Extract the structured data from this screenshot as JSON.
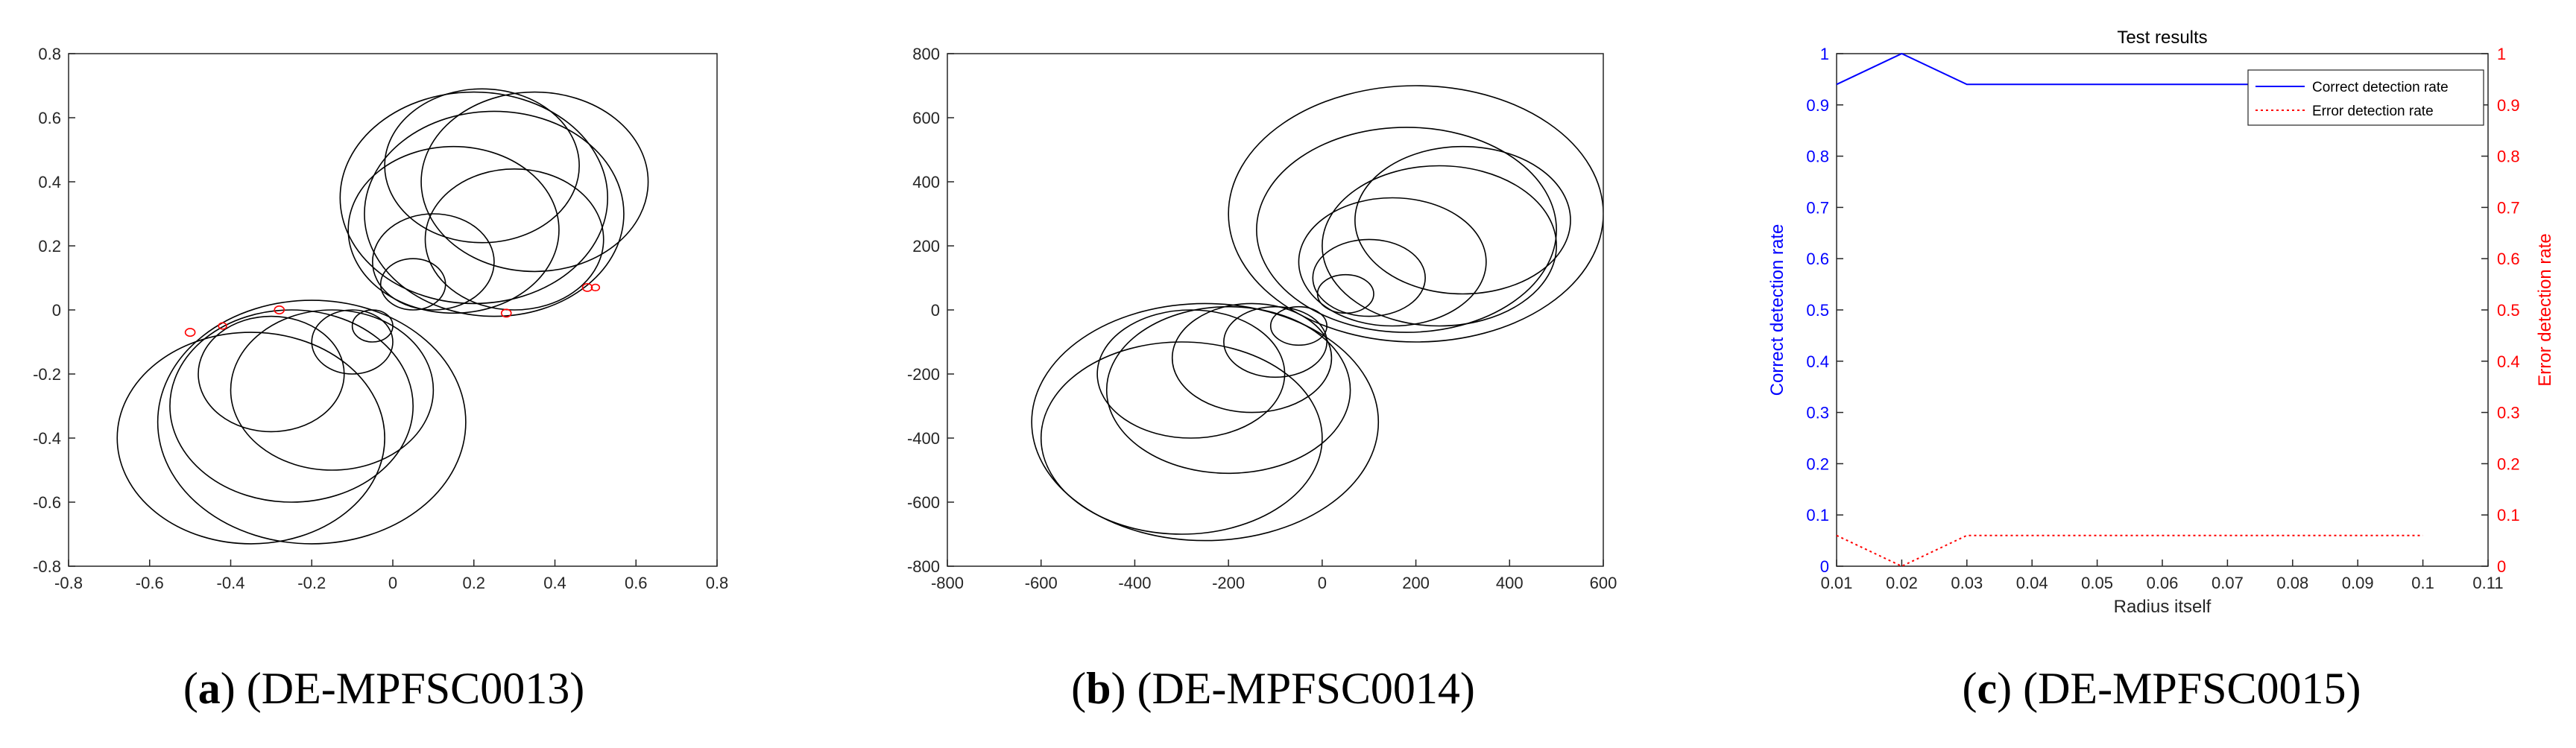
{
  "captions": [
    {
      "letter": "a",
      "text": "(DE-MPFSC0013)"
    },
    {
      "letter": "b",
      "text": "(DE-MPFSC0014)"
    },
    {
      "letter": "c",
      "text": "(DE-MPFSC0015)"
    }
  ],
  "chart_data": [
    {
      "type": "scatter",
      "marker": "circle",
      "title": "",
      "xlim": [
        -0.8,
        0.8
      ],
      "ylim": [
        -0.8,
        0.8
      ],
      "xticks": [
        "-0.8",
        "-0.6",
        "-0.4",
        "-0.2",
        "0",
        "0.2",
        "0.4",
        "0.6",
        "0.8"
      ],
      "yticks": [
        "-0.8",
        "-0.6",
        "-0.4",
        "-0.2",
        "0",
        "0.2",
        "0.4",
        "0.6",
        "0.8"
      ],
      "colors": {
        "self": "#000000",
        "detectors": "#ff0000"
      },
      "series": [
        {
          "color": "#000000",
          "circles": [
            {
              "x": 0.2,
              "y": 0.35,
              "r": 0.33
            },
            {
              "x": 0.25,
              "y": 0.3,
              "r": 0.32
            },
            {
              "x": 0.15,
              "y": 0.25,
              "r": 0.26
            },
            {
              "x": 0.3,
              "y": 0.22,
              "r": 0.22
            },
            {
              "x": 0.1,
              "y": 0.15,
              "r": 0.15
            },
            {
              "x": 0.35,
              "y": 0.4,
              "r": 0.28
            },
            {
              "x": 0.22,
              "y": 0.45,
              "r": 0.24
            },
            {
              "x": 0.05,
              "y": 0.08,
              "r": 0.08
            },
            {
              "x": -0.2,
              "y": -0.35,
              "r": 0.38
            },
            {
              "x": -0.25,
              "y": -0.3,
              "r": 0.3
            },
            {
              "x": -0.15,
              "y": -0.25,
              "r": 0.25
            },
            {
              "x": -0.3,
              "y": -0.2,
              "r": 0.18
            },
            {
              "x": -0.1,
              "y": -0.1,
              "r": 0.1
            },
            {
              "x": -0.35,
              "y": -0.4,
              "r": 0.33
            },
            {
              "x": -0.05,
              "y": -0.05,
              "r": 0.05
            }
          ]
        },
        {
          "color": "#ff0000",
          "circles": [
            {
              "x": -0.5,
              "y": -0.07,
              "r": 0.012
            },
            {
              "x": -0.42,
              "y": -0.05,
              "r": 0.01
            },
            {
              "x": -0.28,
              "y": 0.0,
              "r": 0.012
            },
            {
              "x": 0.28,
              "y": -0.01,
              "r": 0.012
            },
            {
              "x": 0.48,
              "y": 0.07,
              "r": 0.012
            },
            {
              "x": 0.5,
              "y": 0.07,
              "r": 0.01
            }
          ]
        }
      ]
    },
    {
      "type": "scatter",
      "marker": "circle",
      "title": "",
      "xlim": [
        -800,
        600
      ],
      "ylim": [
        -800,
        800
      ],
      "xticks": [
        "-800",
        "-600",
        "-400",
        "-200",
        "0",
        "200",
        "400",
        "600"
      ],
      "yticks": [
        "-800",
        "-600",
        "-400",
        "-200",
        "0",
        "200",
        "400",
        "600",
        "800"
      ],
      "series": [
        {
          "color": "#000000",
          "circles": [
            {
              "x": 200,
              "y": 300,
              "r": 400
            },
            {
              "x": 180,
              "y": 250,
              "r": 320
            },
            {
              "x": 250,
              "y": 200,
              "r": 250
            },
            {
              "x": 150,
              "y": 150,
              "r": 200
            },
            {
              "x": 100,
              "y": 100,
              "r": 120
            },
            {
              "x": 300,
              "y": 280,
              "r": 230
            },
            {
              "x": 50,
              "y": 50,
              "r": 60
            },
            {
              "x": -250,
              "y": -350,
              "r": 370
            },
            {
              "x": -200,
              "y": -250,
              "r": 260
            },
            {
              "x": -300,
              "y": -400,
              "r": 300
            },
            {
              "x": -150,
              "y": -150,
              "r": 170
            },
            {
              "x": -100,
              "y": -100,
              "r": 110
            },
            {
              "x": -50,
              "y": -50,
              "r": 60
            },
            {
              "x": -280,
              "y": -200,
              "r": 200
            }
          ]
        }
      ]
    },
    {
      "type": "line",
      "title": "Test results",
      "xlabel": "Radius itself",
      "ylabel": "Correct detection rate",
      "y2label": "Error detection rate",
      "xlim": [
        0.01,
        0.11
      ],
      "ylim": [
        0,
        1
      ],
      "y2lim": [
        0,
        1
      ],
      "xticks": [
        "0.01",
        "0.02",
        "0.03",
        "0.04",
        "0.05",
        "0.06",
        "0.07",
        "0.08",
        "0.09",
        "0.1",
        "0.11"
      ],
      "yticks": [
        "0",
        "0.1",
        "0.2",
        "0.3",
        "0.4",
        "0.5",
        "0.6",
        "0.7",
        "0.8",
        "0.9",
        "1"
      ],
      "x": [
        0.01,
        0.02,
        0.03,
        0.04,
        0.05,
        0.06,
        0.07,
        0.08,
        0.09,
        0.1
      ],
      "legend_position": "top-right",
      "series": [
        {
          "name": "Correct detection rate",
          "axis": "left",
          "color": "#0000ff",
          "style": "solid",
          "values": [
            0.94,
            1.0,
            0.94,
            0.94,
            0.94,
            0.94,
            0.94,
            0.94,
            0.94,
            0.94
          ]
        },
        {
          "name": "Error detection rate",
          "axis": "right",
          "color": "#ff0000",
          "style": "dotted",
          "values": [
            0.06,
            0.0,
            0.06,
            0.06,
            0.06,
            0.06,
            0.06,
            0.06,
            0.06,
            0.06
          ]
        }
      ]
    }
  ]
}
